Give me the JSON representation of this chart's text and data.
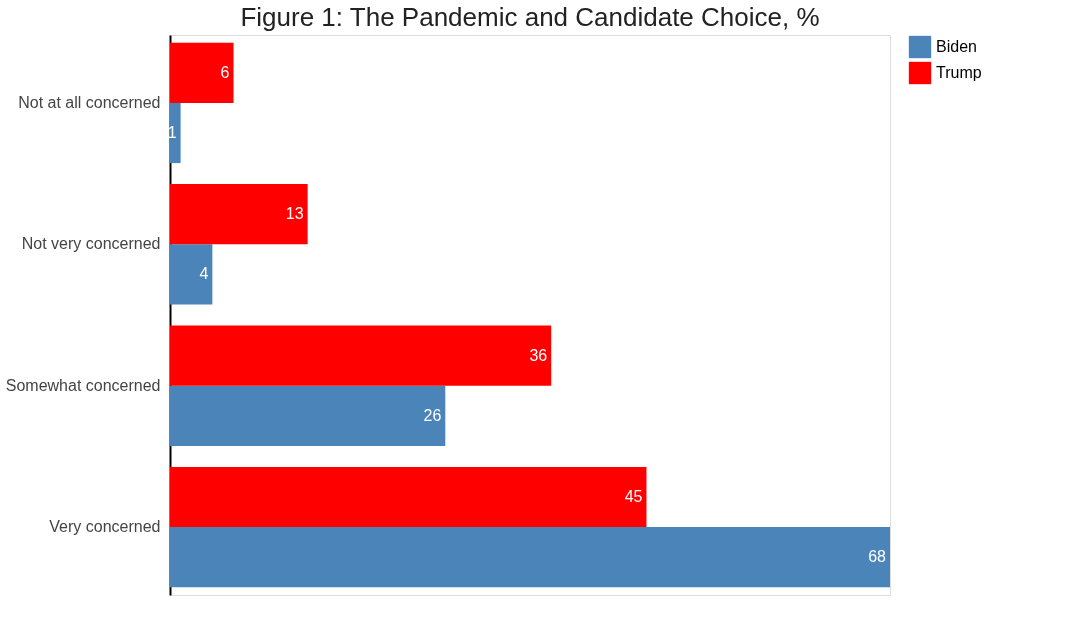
{
  "chart_data": {
    "type": "bar",
    "orientation": "horizontal",
    "title": "Figure 1: The Pandemic and Candidate Choice, %",
    "categories": [
      "Not at all concerned",
      "Not very concerned",
      "Somewhat concerned",
      "Very concerned"
    ],
    "series": [
      {
        "name": "Biden",
        "color": "#4a84b9",
        "values": [
          1,
          4,
          26,
          68
        ]
      },
      {
        "name": "Trump",
        "color": "#ff0000",
        "values": [
          6,
          13,
          36,
          45
        ]
      }
    ],
    "data_labels": true,
    "grid": false,
    "legend": "right"
  }
}
